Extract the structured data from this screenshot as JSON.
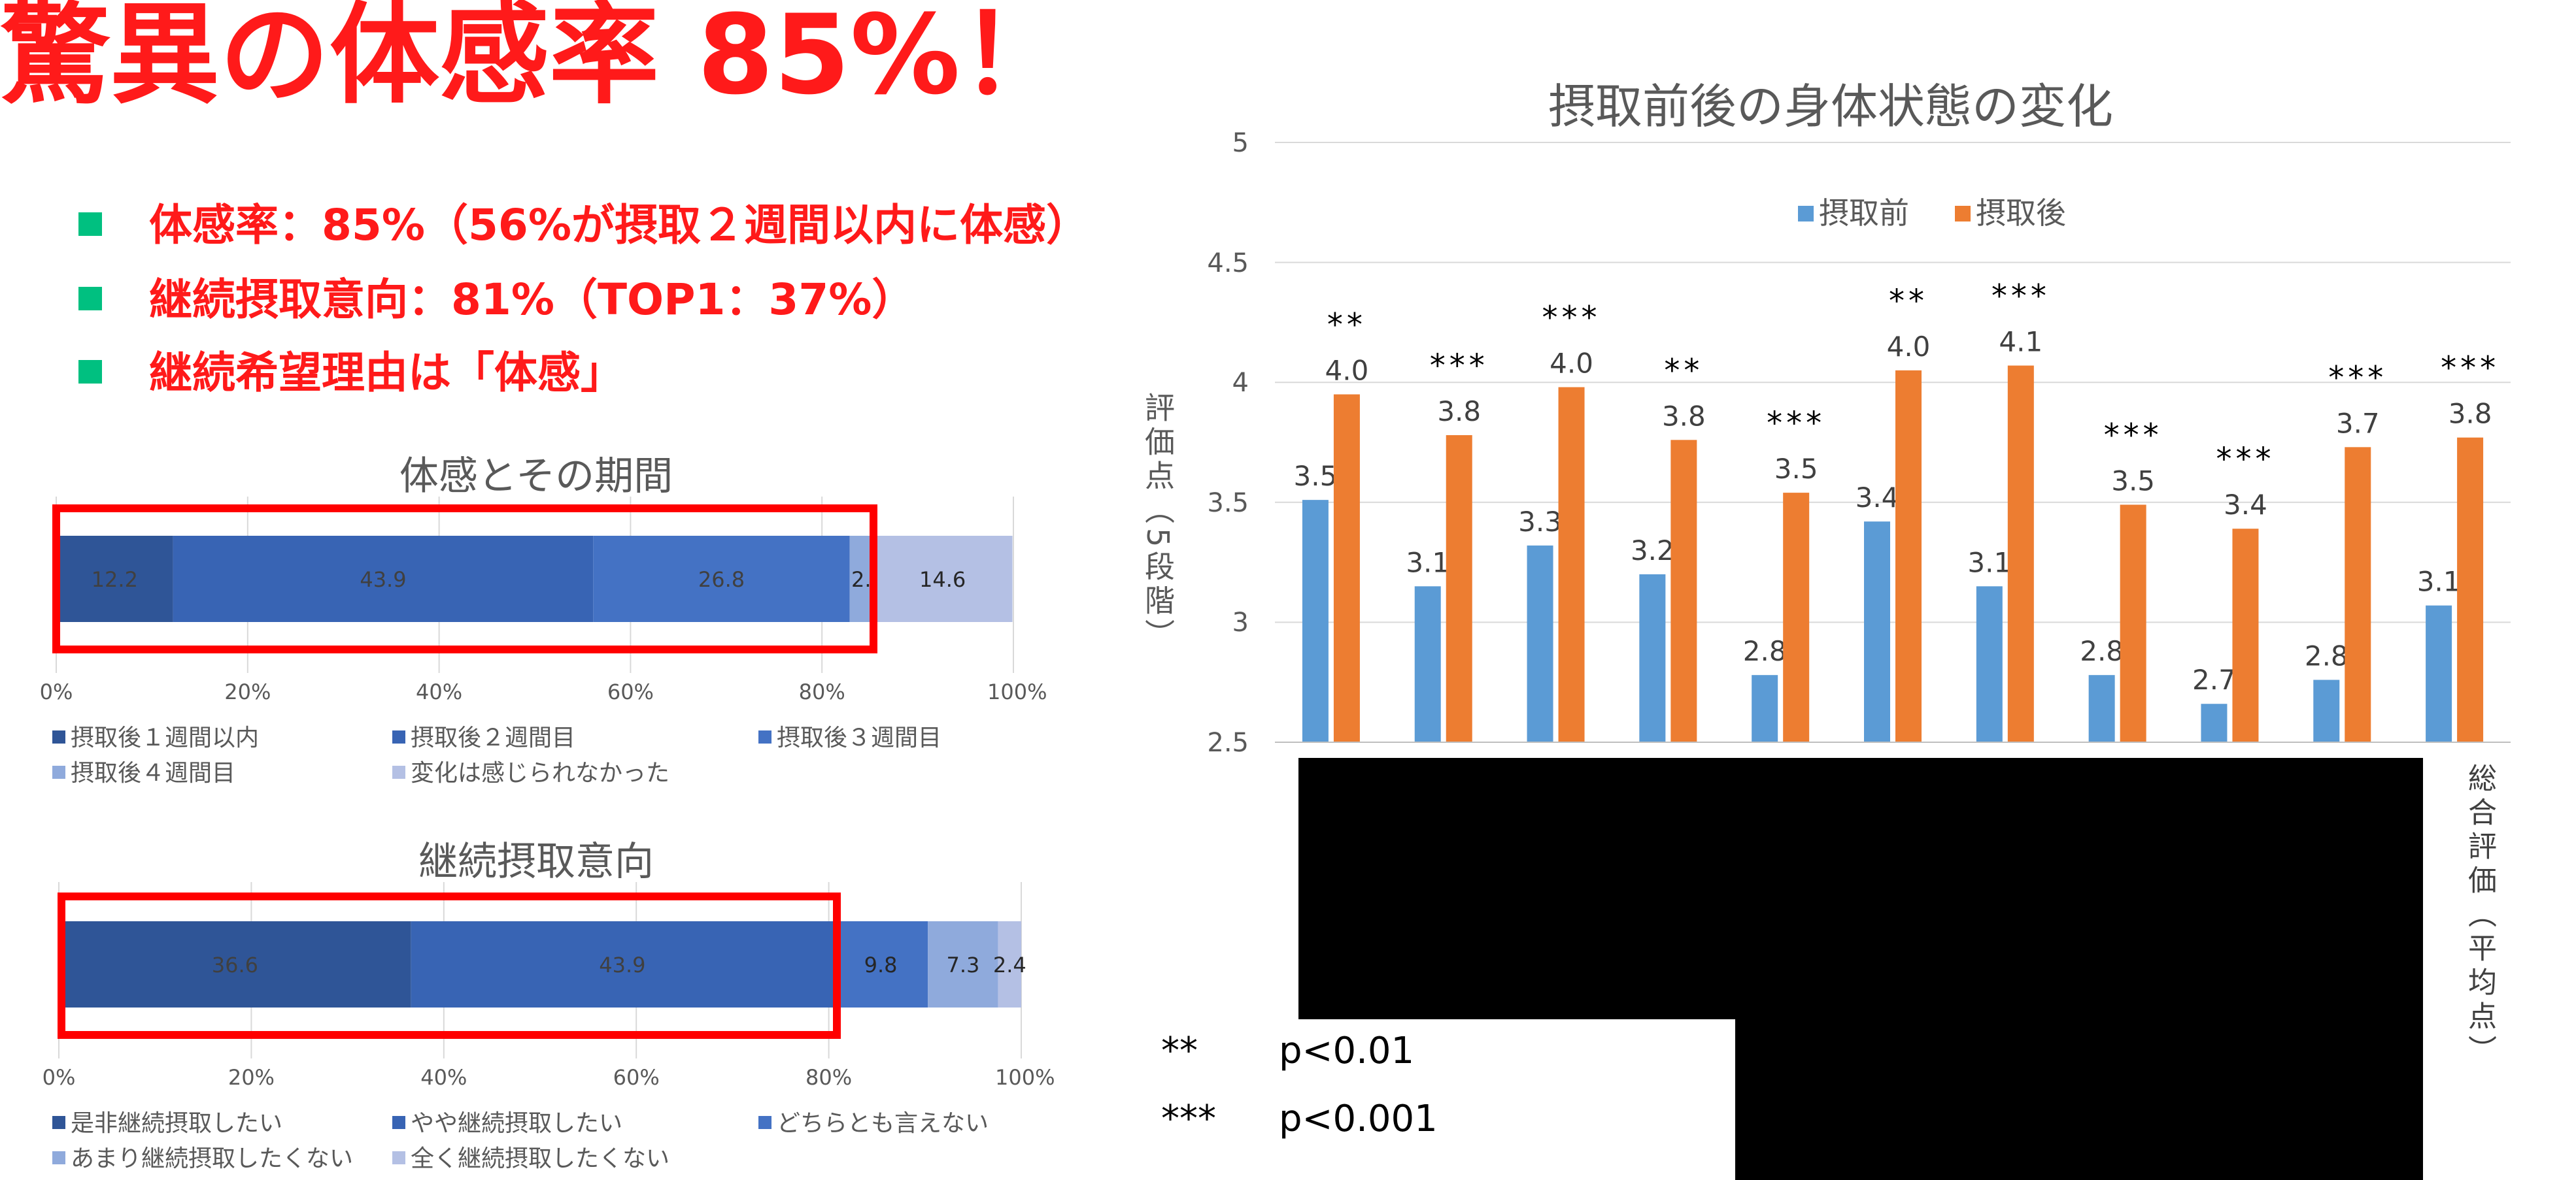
{
  "headline": "驚異の体感率 85%！",
  "bullets": [
    "体感率：85%（56%が摂取２週間以内に体感）",
    "継続摂取意向：81%（TOP1：37%）",
    "継続希望理由は「体感」"
  ],
  "colors": {
    "accent_red": "#ff0000",
    "bullet_marker": "#00c080",
    "before": "#5b9bd5",
    "after": "#ed7d31"
  },
  "chart_data": [
    {
      "type": "bar",
      "orientation": "horizontal-stacked",
      "title": "体感とその期間",
      "xlim": [
        0,
        100
      ],
      "x_ticks": [
        "0%",
        "20%",
        "40%",
        "60%",
        "80%",
        "100%"
      ],
      "legend_position": "bottom",
      "segments": [
        {
          "name": "摂取後１週間以内",
          "value": 12.2,
          "label": "12.2",
          "color": "#2f5597"
        },
        {
          "name": "摂取後２週間目",
          "value": 43.9,
          "label": "43.9",
          "color": "#3864b4"
        },
        {
          "name": "摂取後３週間目",
          "value": 26.8,
          "label": "26.8",
          "color": "#4472c4"
        },
        {
          "name": "摂取後４週間目",
          "value": 2.4,
          "label": "2.",
          "color": "#8faadc"
        },
        {
          "name": "変化は感じられなかった",
          "value": 14.6,
          "label": "14.6",
          "color": "#b4c0e4"
        }
      ]
    },
    {
      "type": "bar",
      "orientation": "horizontal-stacked",
      "title": "継続摂取意向",
      "xlim": [
        0,
        100
      ],
      "x_ticks": [
        "0%",
        "20%",
        "40%",
        "60%",
        "80%",
        "100%"
      ],
      "legend_position": "bottom",
      "segments": [
        {
          "name": "是非継続摂取したい",
          "value": 36.6,
          "label": "36.6",
          "color": "#2f5597"
        },
        {
          "name": "やや継続摂取したい",
          "value": 43.9,
          "label": "43.9",
          "color": "#3864b4"
        },
        {
          "name": "どちらとも言えない",
          "value": 9.8,
          "label": "9.8",
          "color": "#4472c4"
        },
        {
          "name": "あまり継続摂取したくない",
          "value": 7.3,
          "label": "7.3",
          "color": "#8faadc"
        },
        {
          "name": "全く継続摂取したくない",
          "value": 2.4,
          "label": "2.4",
          "color": "#b4c0e4"
        }
      ]
    },
    {
      "type": "bar",
      "title": "摂取前後の身体状態の変化",
      "ylabel": "評価点（5段階）",
      "ylim": [
        2.5,
        5
      ],
      "y_ticks": [
        "2.5",
        "3",
        "3.5",
        "4",
        "4.5",
        "5"
      ],
      "legend_position": "top",
      "categories": [
        "",
        "",
        "",
        "",
        "",
        "",
        "",
        "",
        "",
        "",
        "総合評価（平均点）"
      ],
      "series": [
        {
          "name": "摂取前",
          "values": [
            3.51,
            3.15,
            3.32,
            3.2,
            2.78,
            3.42,
            3.15,
            2.78,
            2.66,
            2.76,
            3.07
          ],
          "labels": [
            "3.5",
            "3.1",
            "3.3",
            "3.2",
            "2.8",
            "3.4",
            "3.1",
            "2.8",
            "2.7",
            "2.8",
            "3.1"
          ]
        },
        {
          "name": "摂取後",
          "values": [
            3.95,
            3.78,
            3.98,
            3.76,
            3.54,
            4.05,
            4.07,
            3.49,
            3.39,
            3.73,
            3.77
          ],
          "labels": [
            "4.0",
            "3.8",
            "4.0",
            "3.8",
            "3.5",
            "4.0",
            "4.1",
            "3.5",
            "3.4",
            "3.7",
            "3.8"
          ]
        }
      ],
      "significance": [
        "**",
        "***",
        "***",
        "**",
        "***",
        "**",
        "***",
        "***",
        "***",
        "***",
        "***"
      ],
      "significance_legend": [
        {
          "mark": "**",
          "text": "p<0.01"
        },
        {
          "mark": "***",
          "text": "p<0.001"
        }
      ]
    }
  ]
}
